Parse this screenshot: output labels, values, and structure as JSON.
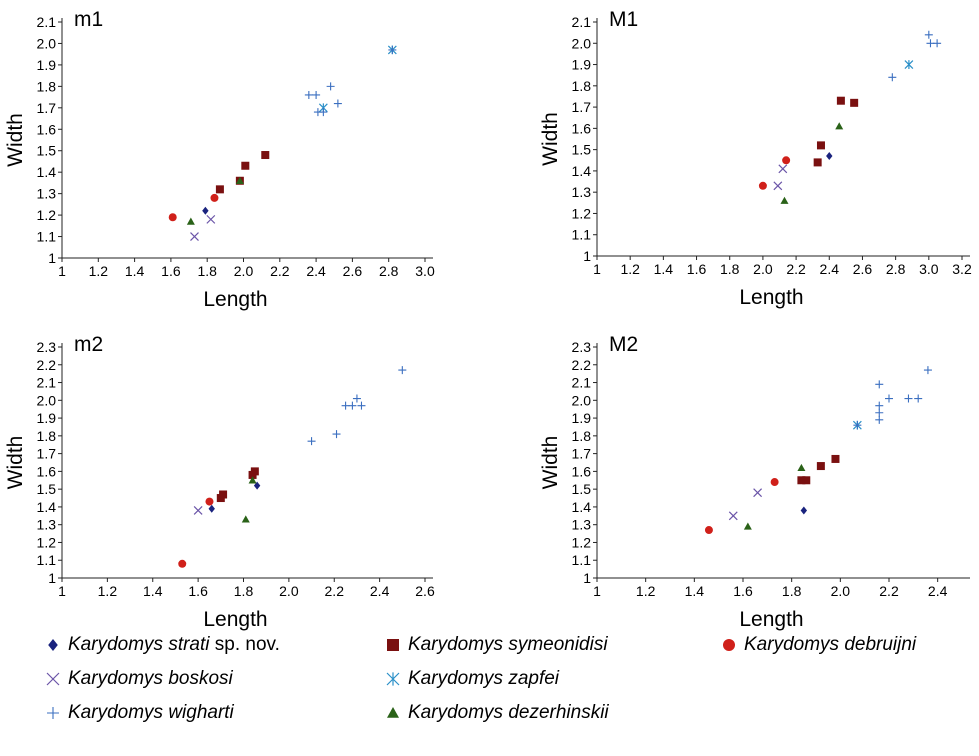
{
  "colors": {
    "strati": "#1a237e",
    "symeonidisi": "#7a1010",
    "debruijni": "#d0201a",
    "boskosi": "#6b55a8",
    "zapfei": "#2b90c8",
    "wigharti": "#3b6fc0",
    "dezerhinskii": "#2a6218"
  },
  "legend": [
    {
      "key": "strati",
      "marker": "diamond-icon",
      "genus": "Karydomys",
      "species": "strati",
      "suffix": " sp. nov."
    },
    {
      "key": "symeonidisi",
      "marker": "square-icon",
      "genus": "Karydomys",
      "species": "symeonidisi",
      "suffix": ""
    },
    {
      "key": "debruijni",
      "marker": "circle-icon",
      "genus": "Karydomys",
      "species": "debruijni",
      "suffix": ""
    },
    {
      "key": "boskosi",
      "marker": "x-cross-icon",
      "genus": "Karydomys",
      "species": "boskosi",
      "suffix": ""
    },
    {
      "key": "zapfei",
      "marker": "asterisk-icon",
      "genus": "Karydomys",
      "species": "zapfei",
      "suffix": ""
    },
    {
      "key": "wigharti",
      "marker": "plus-icon",
      "genus": "Karydomys",
      "species": "wigharti",
      "suffix": ""
    },
    {
      "key": "dezerhinskii",
      "marker": "triangle-icon",
      "genus": "Karydomys",
      "species": "dezerhinskii",
      "suffix": ""
    }
  ],
  "chart_data": [
    {
      "type": "scatter",
      "title": "m1",
      "xlabel": "Length",
      "ylabel": "Width",
      "xlim": [
        1,
        3.0
      ],
      "ylim": [
        1,
        2.1
      ],
      "xticks": [
        1,
        1.2,
        1.4,
        1.6,
        1.8,
        2.0,
        2.2,
        2.4,
        2.6,
        2.8,
        3.0
      ],
      "xtick_labels": [
        "1",
        "1.2",
        "1.4",
        "1.6",
        "1.8",
        "2.0",
        "2.2",
        "2.4",
        "2.6",
        "2.8",
        "3.0"
      ],
      "yticks": [
        1,
        1.1,
        1.2,
        1.3,
        1.4,
        1.5,
        1.6,
        1.7,
        1.8,
        1.9,
        2.0,
        2.1
      ],
      "ytick_labels": [
        "1",
        "1.1",
        "1.2",
        "1.3",
        "1.4",
        "1.5",
        "1.6",
        "1.7",
        "1.8",
        "1.9",
        "2.0",
        "2.1"
      ],
      "series": [
        {
          "key": "strati",
          "x": [
            1.79
          ],
          "y": [
            1.22
          ]
        },
        {
          "key": "symeonidisi",
          "x": [
            1.87,
            1.98,
            2.01,
            2.12
          ],
          "y": [
            1.32,
            1.36,
            1.43,
            1.48
          ]
        },
        {
          "key": "debruijni",
          "x": [
            1.61,
            1.84
          ],
          "y": [
            1.19,
            1.28
          ]
        },
        {
          "key": "boskosi",
          "x": [
            1.73,
            1.82
          ],
          "y": [
            1.1,
            1.18
          ]
        },
        {
          "key": "zapfei",
          "x": [
            2.44,
            2.82
          ],
          "y": [
            1.7,
            1.97
          ]
        },
        {
          "key": "wigharti",
          "x": [
            2.36,
            2.4,
            2.41,
            2.44,
            2.48,
            2.52,
            2.82
          ],
          "y": [
            1.76,
            1.76,
            1.68,
            1.68,
            1.8,
            1.72,
            1.97
          ]
        },
        {
          "key": "dezerhinskii",
          "x": [
            1.71,
            1.98
          ],
          "y": [
            1.17,
            1.36
          ]
        }
      ]
    },
    {
      "type": "scatter",
      "title": "M1",
      "xlabel": "Length",
      "ylabel": "Width",
      "xlim": [
        1,
        3.2
      ],
      "ylim": [
        1,
        2.1
      ],
      "xticks": [
        1,
        1.2,
        1.4,
        1.6,
        1.8,
        2.0,
        2.2,
        2.4,
        2.6,
        2.8,
        3.0,
        3.2
      ],
      "xtick_labels": [
        "1",
        "1.2",
        "1.4",
        "1.6",
        "1.8",
        "2.0",
        "2.2",
        "2.4",
        "2.6",
        "2.8",
        "3.0",
        "3.2"
      ],
      "yticks": [
        1,
        1.1,
        1.2,
        1.3,
        1.4,
        1.5,
        1.6,
        1.7,
        1.8,
        1.9,
        2.0,
        2.1
      ],
      "ytick_labels": [
        "1",
        "1.1",
        "1.2",
        "1.3",
        "1.4",
        "1.5",
        "1.6",
        "1.7",
        "1.8",
        "1.9",
        "2.0",
        "2.1"
      ],
      "series": [
        {
          "key": "strati",
          "x": [
            2.4
          ],
          "y": [
            1.47
          ]
        },
        {
          "key": "symeonidisi",
          "x": [
            2.33,
            2.35,
            2.47,
            2.55
          ],
          "y": [
            1.44,
            1.52,
            1.73,
            1.72
          ]
        },
        {
          "key": "debruijni",
          "x": [
            2.0,
            2.14
          ],
          "y": [
            1.33,
            1.45
          ]
        },
        {
          "key": "boskosi",
          "x": [
            2.09,
            2.12
          ],
          "y": [
            1.33,
            1.41
          ]
        },
        {
          "key": "zapfei",
          "x": [
            2.88
          ],
          "y": [
            1.9
          ]
        },
        {
          "key": "wigharti",
          "x": [
            2.78,
            3.0,
            3.01,
            3.05
          ],
          "y": [
            1.84,
            2.04,
            2.0,
            2.0
          ]
        },
        {
          "key": "dezerhinskii",
          "x": [
            2.13,
            2.46
          ],
          "y": [
            1.26,
            1.61
          ]
        }
      ]
    },
    {
      "type": "scatter",
      "title": "m2",
      "xlabel": "Length",
      "ylabel": "Width",
      "xlim": [
        1,
        2.6
      ],
      "ylim": [
        1,
        2.3
      ],
      "xticks": [
        1,
        1.2,
        1.4,
        1.6,
        1.8,
        2.0,
        2.2,
        2.4,
        2.6
      ],
      "xtick_labels": [
        "1",
        "1.2",
        "1.4",
        "1.6",
        "1.8",
        "2.0",
        "2.2",
        "2.4",
        "2.6"
      ],
      "yticks": [
        1,
        1.1,
        1.2,
        1.3,
        1.4,
        1.5,
        1.6,
        1.7,
        1.8,
        1.9,
        2.0,
        2.1,
        2.2,
        2.3
      ],
      "ytick_labels": [
        "1",
        "1.1",
        "1.2",
        "1.3",
        "1.4",
        "1.5",
        "1.6",
        "1.7",
        "1.8",
        "1.9",
        "2.0",
        "2.1",
        "2.2",
        "2.3"
      ],
      "series": [
        {
          "key": "strati",
          "x": [
            1.66,
            1.86
          ],
          "y": [
            1.39,
            1.52
          ]
        },
        {
          "key": "symeonidisi",
          "x": [
            1.7,
            1.71,
            1.84,
            1.85
          ],
          "y": [
            1.45,
            1.47,
            1.58,
            1.6
          ]
        },
        {
          "key": "debruijni",
          "x": [
            1.53,
            1.65
          ],
          "y": [
            1.08,
            1.43
          ]
        },
        {
          "key": "boskosi",
          "x": [
            1.6
          ],
          "y": [
            1.38
          ]
        },
        {
          "key": "zapfei",
          "x": [],
          "y": []
        },
        {
          "key": "wigharti",
          "x": [
            2.1,
            2.21,
            2.25,
            2.28,
            2.3,
            2.32,
            2.5
          ],
          "y": [
            1.77,
            1.81,
            1.97,
            1.97,
            2.01,
            1.97,
            2.17
          ]
        },
        {
          "key": "dezerhinskii",
          "x": [
            1.81,
            1.84
          ],
          "y": [
            1.33,
            1.55
          ]
        }
      ]
    },
    {
      "type": "scatter",
      "title": "M2",
      "xlabel": "Length",
      "ylabel": "Width",
      "xlim": [
        1,
        2.5
      ],
      "ylim": [
        1,
        2.3
      ],
      "xticks": [
        1,
        1.2,
        1.4,
        1.6,
        1.8,
        2.0,
        2.2,
        2.4
      ],
      "xtick_labels": [
        "1",
        "1.2",
        "1.4",
        "1.6",
        "1.8",
        "2.0",
        "2.2",
        "2.4"
      ],
      "yticks": [
        1,
        1.1,
        1.2,
        1.3,
        1.4,
        1.5,
        1.6,
        1.7,
        1.8,
        1.9,
        2.0,
        2.1,
        2.2,
        2.3
      ],
      "ytick_labels": [
        "1",
        "1.1",
        "1.2",
        "1.3",
        "1.4",
        "1.5",
        "1.6",
        "1.7",
        "1.8",
        "1.9",
        "2.0",
        "2.1",
        "2.2",
        "2.3"
      ],
      "series": [
        {
          "key": "strati",
          "x": [
            1.85
          ],
          "y": [
            1.38
          ]
        },
        {
          "key": "symeonidisi",
          "x": [
            1.84,
            1.86,
            1.92,
            1.98
          ],
          "y": [
            1.55,
            1.55,
            1.63,
            1.67
          ]
        },
        {
          "key": "debruijni",
          "x": [
            1.46,
            1.73
          ],
          "y": [
            1.27,
            1.54
          ]
        },
        {
          "key": "boskosi",
          "x": [
            1.56,
            1.66
          ],
          "y": [
            1.35,
            1.48
          ]
        },
        {
          "key": "zapfei",
          "x": [
            2.07
          ],
          "y": [
            1.86
          ]
        },
        {
          "key": "wigharti",
          "x": [
            2.07,
            2.16,
            2.16,
            2.16,
            2.16,
            2.2,
            2.28,
            2.32,
            2.36
          ],
          "y": [
            1.86,
            1.89,
            1.93,
            1.97,
            2.09,
            2.01,
            2.01,
            2.01,
            2.17
          ]
        },
        {
          "key": "dezerhinskii",
          "x": [
            1.62,
            1.84
          ],
          "y": [
            1.29,
            1.62
          ]
        }
      ]
    }
  ]
}
